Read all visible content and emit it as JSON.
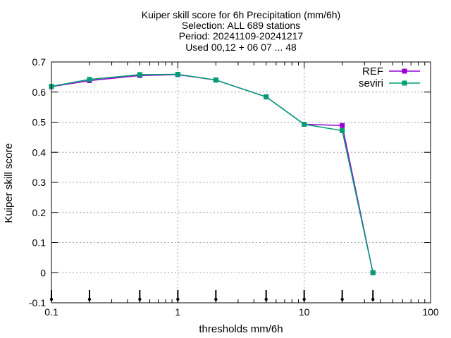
{
  "chart_data": {
    "type": "line",
    "title_lines": [
      "Kuiper skill score  for 6h Precipitation (mm/6h)",
      "Selection: ALL    689 stations",
      "Period: 20241109-20241217",
      "Used 00,12 + 06 07 ... 48"
    ],
    "xlabel": "thresholds mm/6h",
    "ylabel": "Kuiper skill score",
    "xscale": "log",
    "xlim": [
      0.1,
      100
    ],
    "ylim": [
      -0.1,
      0.7
    ],
    "xticks": [
      0.1,
      1,
      10,
      100
    ],
    "xtick_labels": [
      "0.1",
      "1",
      "10",
      "100"
    ],
    "yticks": [
      -0.1,
      0,
      0.1,
      0.2,
      0.3,
      0.4,
      0.5,
      0.6,
      0.7
    ],
    "ytick_labels": [
      "-0.1",
      "0",
      "0.1",
      "0.2",
      "0.3",
      "0.4",
      "0.5",
      "0.6",
      "0.7"
    ],
    "grid": true,
    "legend_position": "top-right",
    "threshold_markers": [
      0.1,
      0.2,
      0.5,
      1,
      2,
      5,
      10,
      20,
      35
    ],
    "series": [
      {
        "name": "REF",
        "color": "#9400d3",
        "x": [
          0.1,
          0.2,
          0.5,
          1,
          2,
          5,
          10,
          20,
          35
        ],
        "y": [
          0.618,
          0.638,
          0.655,
          0.658,
          0.64,
          0.584,
          0.493,
          0.489,
          0.0
        ]
      },
      {
        "name": "seviri",
        "color": "#009e73",
        "x": [
          0.1,
          0.2,
          0.5,
          1,
          2,
          5,
          10,
          20,
          35
        ],
        "y": [
          0.619,
          0.642,
          0.658,
          0.659,
          0.64,
          0.584,
          0.493,
          0.472,
          0.0
        ]
      }
    ]
  }
}
